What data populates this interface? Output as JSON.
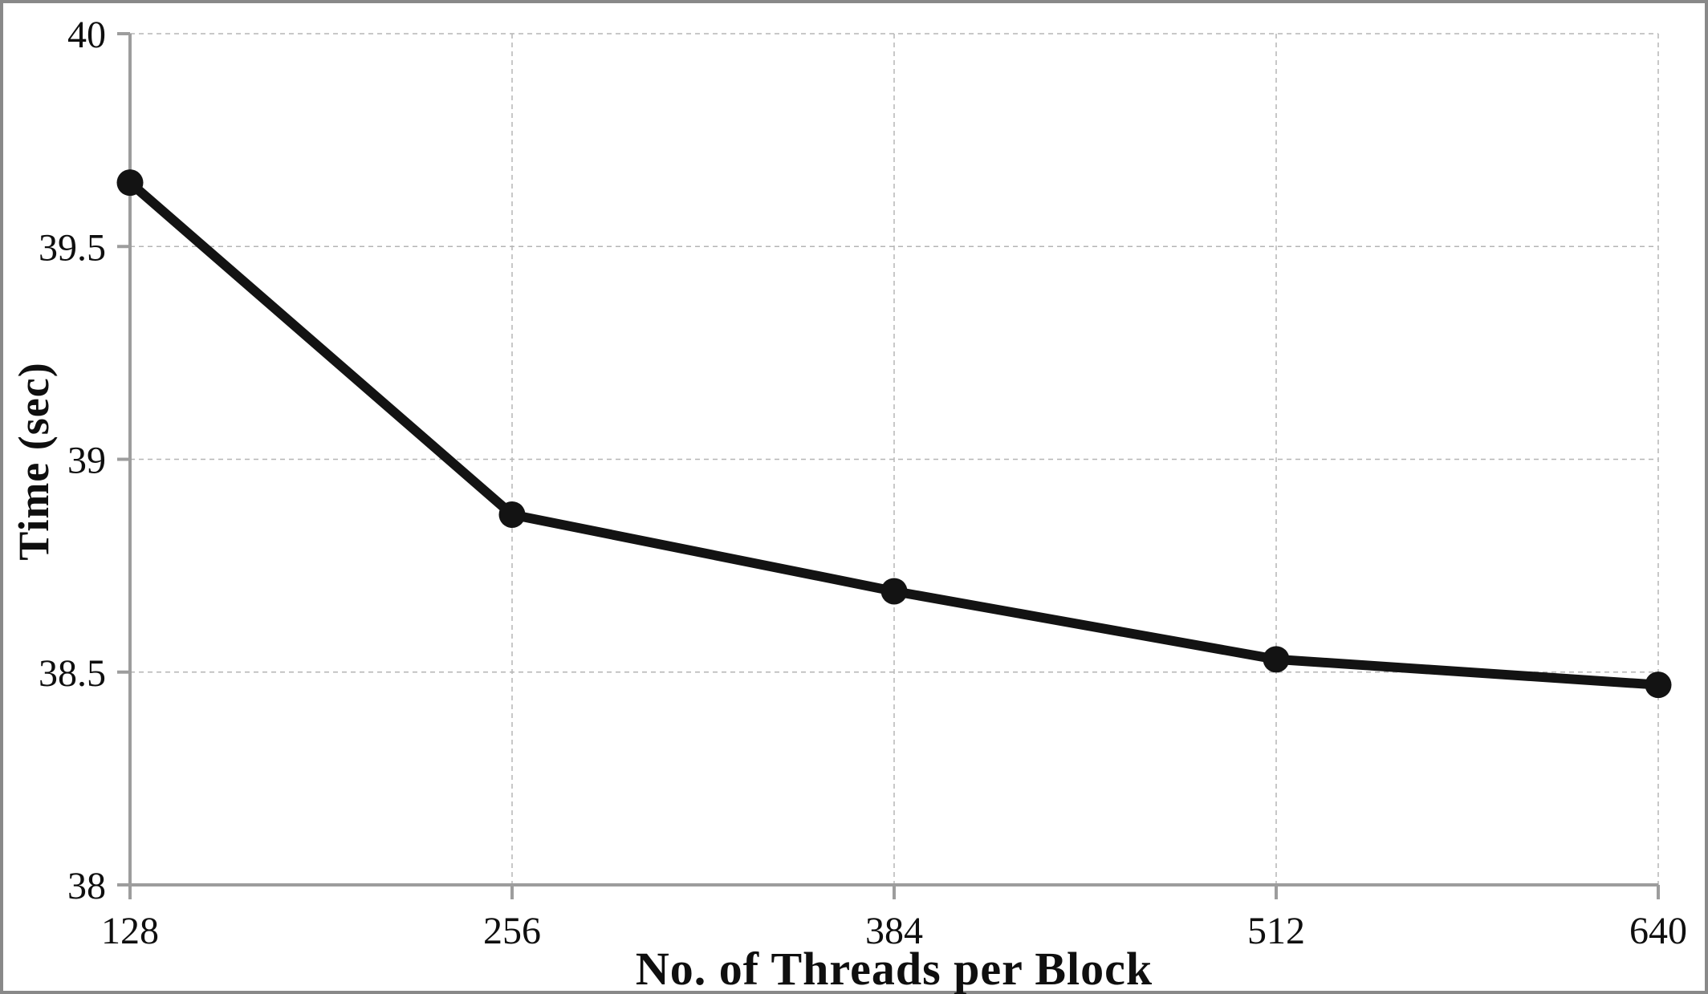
{
  "chart_data": {
    "type": "line",
    "title": "",
    "xlabel": "No. of Threads per Block",
    "ylabel": "Time (sec)",
    "x": [
      128,
      256,
      384,
      512,
      640
    ],
    "x_tick_labels": [
      "128",
      "256",
      "384",
      "512",
      "640"
    ],
    "series": [
      {
        "name": "Time (sec)",
        "values": [
          39.65,
          38.87,
          38.69,
          38.53,
          38.47
        ]
      }
    ],
    "ylim": [
      38,
      40
    ],
    "ytick_step": 0.5,
    "y_tick_labels": [
      "38",
      "38.5",
      "39",
      "39.5",
      "40"
    ],
    "legend": "none",
    "grid": "dashed horizontal and vertical gridlines",
    "colors": {
      "line": "#131313",
      "marker": "#131313",
      "axis": "#9d9d9d",
      "gridline": "#b5b5b5",
      "tick_label": "#0f0f0f",
      "border": "#898989",
      "background": "#ffffff"
    }
  }
}
